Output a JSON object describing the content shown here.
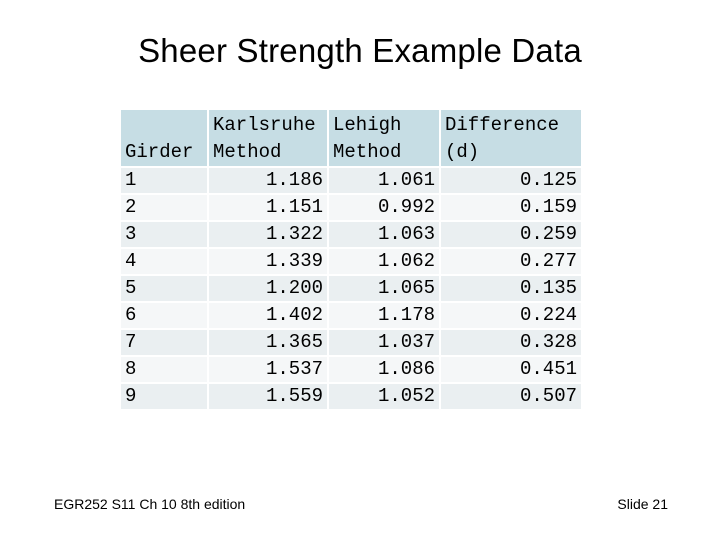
{
  "slide": {
    "title": "Sheer Strength Example Data",
    "footer_left": "EGR252 S11 Ch 10  8th edition",
    "footer_right": "Slide 21"
  },
  "table": {
    "headers": {
      "girder": "Girder",
      "karlsruhe_line1": "Karlsruhe",
      "karlsruhe_line2": "Method",
      "lehigh_line1": "Lehigh",
      "lehigh_line2": "Method",
      "difference_line1": "Difference",
      "difference_line2": "(d)"
    },
    "rows": [
      {
        "girder": "1",
        "karlsruhe": "1.186",
        "lehigh": "1.061",
        "difference": "0.125"
      },
      {
        "girder": "2",
        "karlsruhe": "1.151",
        "lehigh": "0.992",
        "difference": "0.159"
      },
      {
        "girder": "3",
        "karlsruhe": "1.322",
        "lehigh": "1.063",
        "difference": "0.259"
      },
      {
        "girder": "4",
        "karlsruhe": "1.339",
        "lehigh": "1.062",
        "difference": "0.277"
      },
      {
        "girder": "5",
        "karlsruhe": "1.200",
        "lehigh": "1.065",
        "difference": "0.135"
      },
      {
        "girder": "6",
        "karlsruhe": "1.402",
        "lehigh": "1.178",
        "difference": "0.224"
      },
      {
        "girder": "7",
        "karlsruhe": "1.365",
        "lehigh": "1.037",
        "difference": "0.328"
      },
      {
        "girder": "8",
        "karlsruhe": "1.537",
        "lehigh": "1.086",
        "difference": "0.451"
      },
      {
        "girder": "9",
        "karlsruhe": "1.559",
        "lehigh": "1.052",
        "difference": "0.507"
      }
    ]
  },
  "colors": {
    "header_fill": "#c6dde4",
    "row_fill_odd": "#eaeff1",
    "row_fill_even": "#f5f7f8"
  }
}
